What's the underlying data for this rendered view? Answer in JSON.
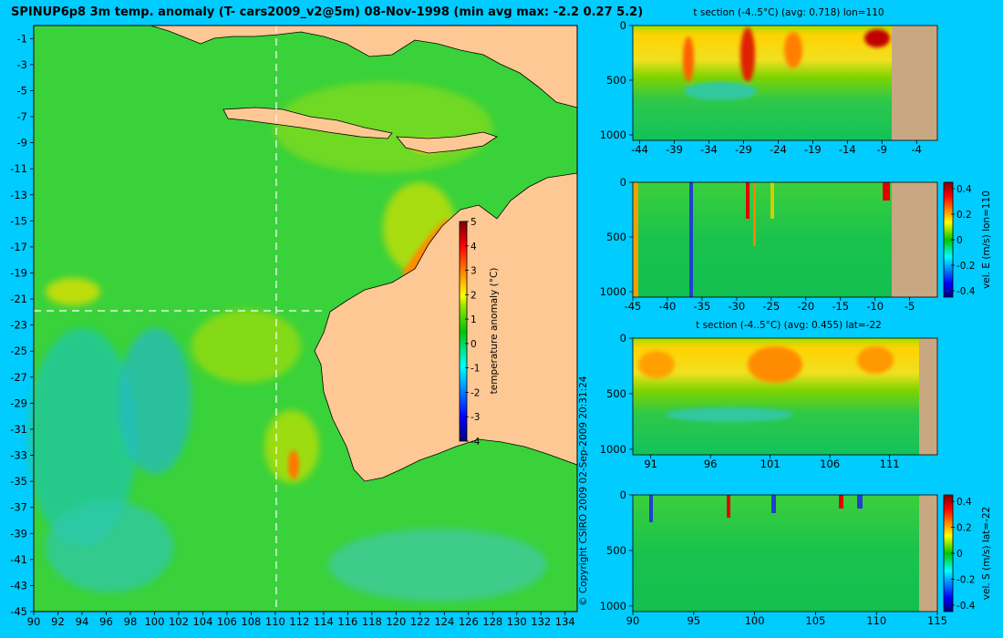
{
  "main_title": "SPINUP6p8 3m temp. anomaly (T- cars2009_v2@5m) 08-Nov-1998 (min avg max: -2.2 0.27 5.2)",
  "copyright": "© Copyright CSIRO 2009   02-Sep-2009 20:31:24",
  "colors": {
    "background": "#00ccff",
    "land": "#fdc894",
    "section_land": "#c8a882"
  },
  "chart_data": [
    {
      "type": "heatmap",
      "name": "map",
      "title": "SPINUP6p8 3m temp. anomaly (T- cars2009_v2@5m) 08-Nov-1998 (min avg max: -2.2 0.27 5.2)",
      "x_ticks": [
        "90",
        "92",
        "94",
        "96",
        "98",
        "100",
        "102",
        "104",
        "106",
        "108",
        "110",
        "112",
        "114",
        "116",
        "118",
        "120",
        "122",
        "124",
        "126",
        "128",
        "130",
        "132",
        "134"
      ],
      "y_ticks": [
        "-1",
        "-3",
        "-5",
        "-7",
        "-9",
        "-11",
        "-13",
        "-15",
        "-17",
        "-19",
        "-21",
        "-23",
        "-25",
        "-27",
        "-29",
        "-31",
        "-33",
        "-35",
        "-37",
        "-39",
        "-41",
        "-43",
        "-45"
      ],
      "xlim": [
        90,
        135
      ],
      "ylim": [
        -45,
        0
      ],
      "value_range": [
        -2.2,
        5.2
      ],
      "value_avg": 0.27,
      "section_lines": {
        "lon": 110,
        "lat": -22
      },
      "colorbar": {
        "label": "temperature anomaly (°C)",
        "ticks": [
          "5",
          "4",
          "3",
          "2",
          "1",
          "0",
          "-1",
          "-2",
          "-3",
          "-4"
        ],
        "range": [
          -4,
          5
        ]
      }
    },
    {
      "type": "heatmap",
      "name": "t-section-lon",
      "title": "t section (-4..5°C) (avg: 0.718) lon=110",
      "x_ticks": [
        "-44",
        "-39",
        "-34",
        "-29",
        "-24",
        "-19",
        "-14",
        "-9",
        "-4"
      ],
      "y_ticks": [
        "0",
        "500",
        "1000"
      ],
      "xlim": [
        -45,
        -1
      ],
      "ylim": [
        1050,
        0
      ],
      "avg": 0.718
    },
    {
      "type": "heatmap",
      "name": "vel-e-section",
      "x_ticks": [
        "-45",
        "-40",
        "-35",
        "-30",
        "-25",
        "-20",
        "-15",
        "-10",
        "-5"
      ],
      "y_ticks": [
        "0",
        "500",
        "1000"
      ],
      "xlim": [
        -45,
        -1
      ],
      "ylim": [
        1050,
        0
      ],
      "colorbar": {
        "label": "vel. E (m/s) lon=110",
        "ticks": [
          "0.4",
          "0.2",
          "0",
          "-0.2",
          "-0.4"
        ],
        "range": [
          -0.45,
          0.45
        ]
      }
    },
    {
      "type": "heatmap",
      "name": "t-section-lat",
      "title": "t section (-4..5°C) (avg: 0.455) lat=-22",
      "x_ticks": [
        "91",
        "96",
        "101",
        "106",
        "111"
      ],
      "y_ticks": [
        "0",
        "500",
        "1000"
      ],
      "xlim": [
        89.5,
        115
      ],
      "ylim": [
        1050,
        0
      ],
      "avg": 0.455
    },
    {
      "type": "heatmap",
      "name": "vel-s-section",
      "x_ticks": [
        "90",
        "95",
        "100",
        "105",
        "110",
        "115"
      ],
      "y_ticks": [
        "0",
        "500",
        "1000"
      ],
      "xlim": [
        90,
        115
      ],
      "ylim": [
        1050,
        0
      ],
      "colorbar": {
        "label": "vel. S (m/s) lat=-22",
        "ticks": [
          "0.4",
          "0.2",
          "0",
          "-0.2",
          "-0.4"
        ],
        "range": [
          -0.45,
          0.45
        ]
      }
    }
  ]
}
